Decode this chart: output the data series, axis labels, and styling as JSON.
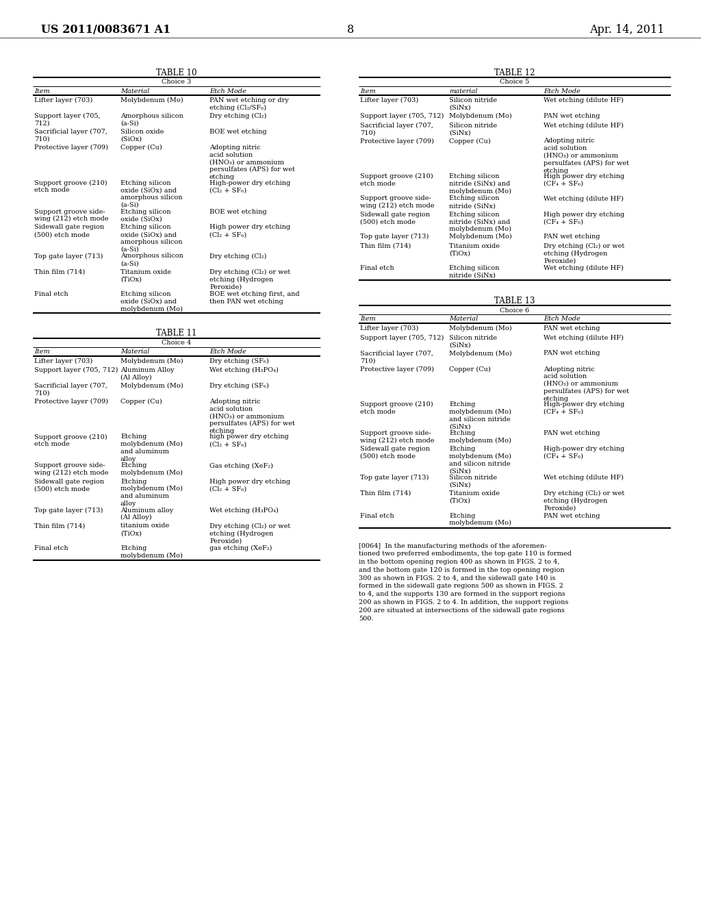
{
  "header_left": "US 2011/0083671 A1",
  "header_right": "Apr. 14, 2011",
  "page_number": "8",
  "background_color": "#ffffff",
  "text_color": "#000000",
  "table10": {
    "title": "TABLE 10",
    "subtitle": "Choice 3",
    "headers": [
      "Item",
      "Material",
      "Etch Mode"
    ],
    "rows": [
      [
        "Lifter layer (703)",
        "Molybdenum (Mo)",
        "PAN wet etching or dry\netching (Cl₂/SF₆)"
      ],
      [
        "Support layer (705,\n712)",
        "Amorphous silicon\n(a-Si)",
        "Dry etching (Cl₂)"
      ],
      [
        "Sacrificial layer (707,\n710)",
        "Silicon oxide\n(SiOx)",
        "BOE wet etching"
      ],
      [
        "Protective layer (709)",
        "Copper (Cu)",
        "Adopting nitric\nacid solution\n(HNO₃) or ammonium\npersulfates (APS) for wet\netching"
      ],
      [
        "Support groove (210)\netch mode",
        "Etching silicon\noxide (SiOx) and\namorphous silicon\n(a-Si)",
        "High-power dry etching\n(Cl₂ + SF₆)"
      ],
      [
        "Support groove side-\nwing (212) etch mode",
        "Etching silicon\noxide (SiOx)",
        "BOE wet etching"
      ],
      [
        "Sidewall gate region\n(500) etch mode",
        "Etching silicon\noxide (SiOx) and\namorphous silicon\n(a-Si)",
        "High power dry etching\n(Cl₂ + SF₆)"
      ],
      [
        "Top gate layer (713)",
        "Amorphous silicon\n(a-Si)",
        "Dry etching (Cl₂)"
      ],
      [
        "Thin film (714)",
        "Titanium oxide\n(TiOx)",
        "Dry etching (Cl₂) or wet\netching (Hydrogen\nPeroxide)"
      ],
      [
        "Final etch",
        "Etching silicon\noxide (SiOx) and\nmolybdenum (Mo)",
        "BOE wet etching first, and\nthen PAN wet etching"
      ]
    ]
  },
  "table11": {
    "title": "TABLE 11",
    "subtitle": "Choice 4",
    "headers": [
      "Item",
      "Material",
      "Etch Mode"
    ],
    "rows": [
      [
        "Lifter layer (703)",
        "Molybdenum (Mo)",
        "Dry etching (SF₆)"
      ],
      [
        "Support layer (705, 712)",
        "Aluminum Alloy\n(Al Alloy)",
        "Wet etching (H₃PO₄)"
      ],
      [
        "Sacrificial layer (707,\n710)",
        "Molybdenum (Mo)",
        "Dry etching (SF₆)"
      ],
      [
        "Protective layer (709)",
        "Copper (Cu)",
        "Adopting nitric\nacid solution\n(HNO₃) or ammonium\npersulfates (APS) for wet\netching"
      ],
      [
        "Support groove (210)\netch mode",
        "Etching\nmolybdenum (Mo)\nand aluminum\nalloy",
        "high power dry etching\n(Cl₂ + SF₆)"
      ],
      [
        "Support groove side-\nwing (212) etch mode",
        "Etching\nmolybdenum (Mo)",
        "Gas etching (XeF₂)"
      ],
      [
        "Sidewall gate region\n(500) etch mode",
        "Etching\nmolybdenum (Mo)\nand aluminum\nalloy",
        "High power dry etching\n(Cl₂ + SF₆)"
      ],
      [
        "Top gate layer (713)",
        "Aluminum alloy\n(Al Alloy)",
        "Wet etching (H₃PO₄)"
      ],
      [
        "Thin film (714)",
        "titanium oxide\n(TiOx)",
        "Dry etching (Cl₂) or wet\netching (Hydrogen\nPeroxide)"
      ],
      [
        "Final etch",
        "Etching\nmolybdenum (Mo)",
        "gas etching (XeF₂)"
      ]
    ]
  },
  "table12": {
    "title": "TABLE 12",
    "subtitle": "Choice 5",
    "headers": [
      "Item",
      "material",
      "Etch Mode"
    ],
    "rows": [
      [
        "Lifter layer (703)",
        "Silicon nitride\n(SiNx)",
        "Wet etching (dilute HF)"
      ],
      [
        "Support layer (705, 712)",
        "Molybdenum (Mo)",
        "PAN wet etching"
      ],
      [
        "Sacrificial layer (707,\n710)",
        "Silicon nitride\n(SiNx)",
        "Wet etching (dilute HF)"
      ],
      [
        "Protective layer (709)",
        "Copper (Cu)",
        "Adopting nitric\nacid solution\n(HNO₃) or ammonium\npersulfates (APS) for wet\netching"
      ],
      [
        "Support groove (210)\netch mode",
        "Etching silicon\nnitride (SiNx) and\nmolybdenum (Mo)",
        "High power dry etching\n(CF₄ + SF₆)"
      ],
      [
        "Support groove side-\nwing (212) etch mode",
        "Etching silicon\nnitride (SiNx)",
        "Wet etching (dilute HF)"
      ],
      [
        "Sidewall gate region\n(500) etch mode",
        "Etching silicon\nnitride (SiNx) and\nmolybdenum (Mo)",
        "High power dry etching\n(CF₄ + SF₆)"
      ],
      [
        "Top gate layer (713)",
        "Molybdenum (Mo)",
        "PAN wet etching"
      ],
      [
        "Thin film (714)",
        "Titanium oxide\n(TiOx)",
        "Dry etching (Cl₂) or wet\netching (Hydrogen\nPeroxide)"
      ],
      [
        "Final etch",
        "Etching silicon\nnitride (SiNx)",
        "Wet etching (dilute HF)"
      ]
    ]
  },
  "table13": {
    "title": "TABLE 13",
    "subtitle": "Choice 6",
    "headers": [
      "Item",
      "Material",
      "Etch Mode"
    ],
    "rows": [
      [
        "Lifter layer (703)",
        "Molybdenum (Mo)",
        "PAN wet etching"
      ],
      [
        "Support layer (705, 712)",
        "Silicon nitride\n(SiNx)",
        "Wet etching (dilute HF)"
      ],
      [
        "Sacrificial layer (707,\n710)",
        "Molybdenum (Mo)",
        "PAN wet etching"
      ],
      [
        "Protective layer (709)",
        "Copper (Cu)",
        "Adopting nitric\nacid solution\n(HNO₃) or ammonium\npersulfates (APS) for wet\netching"
      ],
      [
        "Support groove (210)\netch mode",
        "Etching\nmolybdenum (Mo)\nand silicon nitride\n(SiNx)",
        "High-power dry etching\n(CF₄ + SF₆)"
      ],
      [
        "Support groove side-\nwing (212) etch mode",
        "Etching\nmolybdenum (Mo)",
        "PAN wet etching"
      ],
      [
        "Sidewall gate region\n(500) etch mode",
        "Etching\nmolybdenum (Mo)\nand silicon nitride\n(SiNx)",
        "High-power dry etching\n(CF₄ + SF₆)"
      ],
      [
        "Top gate layer (713)",
        "Silicon nitride\n(SiNx)",
        "Wet etching (dilute HF)"
      ],
      [
        "Thin film (714)",
        "Titanium oxide\n(TiOx)",
        "Dry etching (Cl₂) or wet\netching (Hydrogen\nPeroxide)"
      ],
      [
        "Final etch",
        "Etching\nmolybdenum (Mo)",
        "PAN wet etching"
      ]
    ]
  },
  "paragraph": "[0064]  In the manufacturing methods of the aforemen-\ntioned two preferred embodiments, the top gate 110 is formed\nin the bottom opening region 400 as shown in FIGS. 2 to 4,\nand the bottom gate 120 is formed in the top opening region\n300 as shown in FIGS. 2 to 4, and the sidewall gate 140 is\nformed in the sidewall gate regions 500 as shown in FIGS. 2\nto 4, and the supports 130 are formed in the support regions\n200 as shown in FIGS. 2 to 4. In addition, the support regions\n200 are situated at intersections of the sidewall gate regions\n500."
}
